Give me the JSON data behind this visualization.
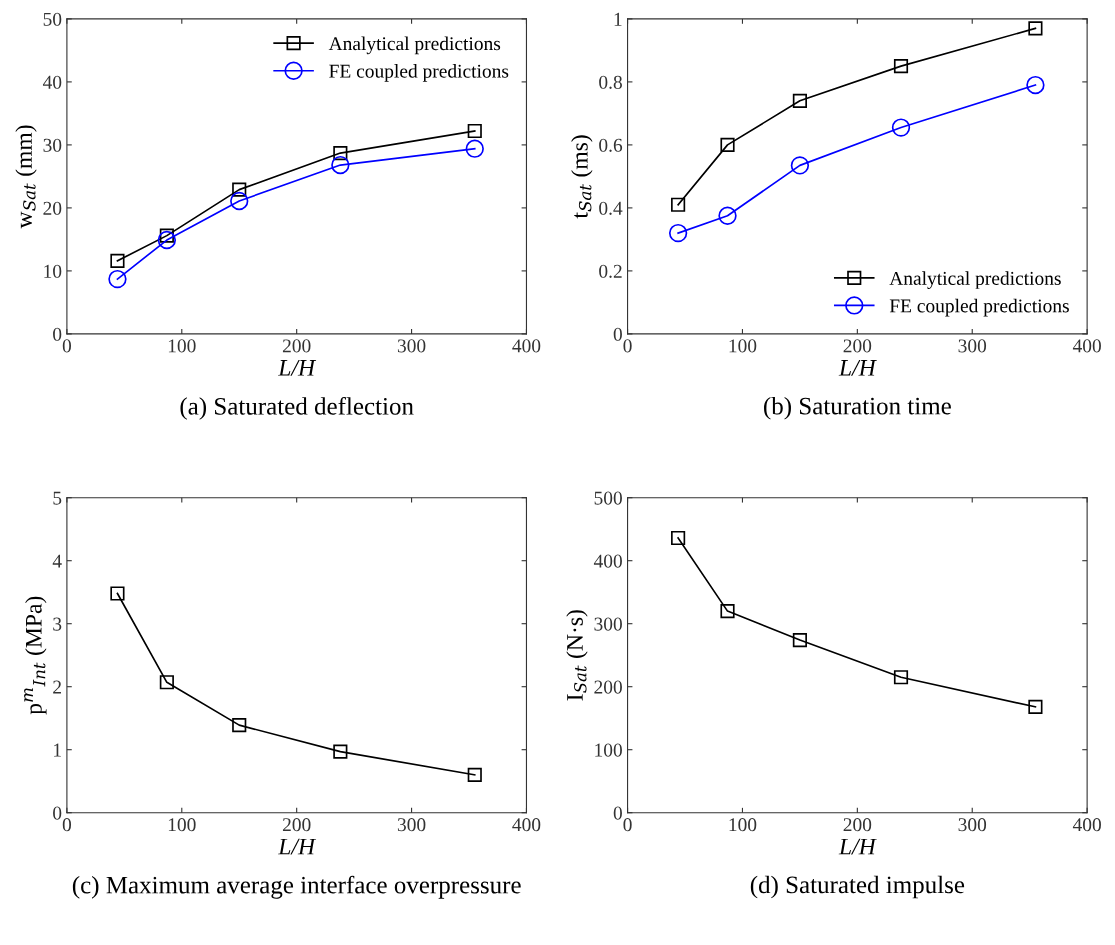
{
  "chart_data": [
    {
      "type": "line",
      "title": "(a) Saturated deflection",
      "xlabel": "L/H",
      "ylabel": "w$_{Sat}$ (mm)",
      "x": [
        44,
        87,
        150,
        238,
        355
      ],
      "xlim": [
        0,
        400
      ],
      "xticks": [
        0,
        100,
        200,
        300,
        400
      ],
      "ylim": [
        0,
        50
      ],
      "yticks": [
        0,
        10,
        20,
        30,
        40,
        50
      ],
      "legend": "top right",
      "series": [
        {
          "name": "Analytical predictions",
          "color": "#000000",
          "marker": "square",
          "values": [
            11.6,
            15.6,
            22.9,
            28.7,
            32.2
          ]
        },
        {
          "name": "FE coupled predictions",
          "color": "#0000ff",
          "marker": "circle",
          "values": [
            8.7,
            14.9,
            21.1,
            26.8,
            29.4
          ]
        }
      ]
    },
    {
      "type": "line",
      "title": "(b) Saturation time",
      "xlabel": "L/H",
      "ylabel": "t$_{Sat}$ (ms)",
      "x": [
        44,
        87,
        150,
        238,
        355
      ],
      "xlim": [
        0,
        400
      ],
      "xticks": [
        0,
        100,
        200,
        300,
        400
      ],
      "ylim": [
        0,
        1
      ],
      "yticks": [
        0,
        0.2,
        0.4,
        0.6,
        0.8,
        1
      ],
      "legend": "bottom right",
      "series": [
        {
          "name": "Analytical predictions",
          "color": "#000000",
          "marker": "square",
          "values": [
            0.41,
            0.6,
            0.74,
            0.85,
            0.97
          ]
        },
        {
          "name": "FE coupled predictions",
          "color": "#0000ff",
          "marker": "circle",
          "values": [
            0.32,
            0.375,
            0.535,
            0.655,
            0.79
          ]
        }
      ]
    },
    {
      "type": "line",
      "title": "(c) Maximum average interface overpressure",
      "xlabel": "L/H",
      "ylabel": "p$^{m}$$_{Int}$ (MPa)",
      "x": [
        44,
        87,
        150,
        238,
        355
      ],
      "xlim": [
        0,
        400
      ],
      "xticks": [
        0,
        100,
        200,
        300,
        400
      ],
      "ylim": [
        0,
        5
      ],
      "yticks": [
        0,
        1,
        2,
        3,
        4,
        5
      ],
      "series": [
        {
          "color": "#000000",
          "marker": "square",
          "values": [
            3.48,
            2.07,
            1.39,
            0.97,
            0.6
          ]
        }
      ]
    },
    {
      "type": "line",
      "title": "(d) Saturated impulse",
      "xlabel": "L/H",
      "ylabel": "I$_{Sat}$ (N·s)",
      "x": [
        44,
        87,
        150,
        238,
        355
      ],
      "xlim": [
        0,
        400
      ],
      "xticks": [
        0,
        100,
        200,
        300,
        400
      ],
      "ylim": [
        0,
        500
      ],
      "yticks": [
        0,
        100,
        200,
        300,
        400,
        500
      ],
      "series": [
        {
          "color": "#000000",
          "marker": "square",
          "values": [
            436,
            320,
            274,
            215,
            168
          ]
        }
      ]
    }
  ]
}
